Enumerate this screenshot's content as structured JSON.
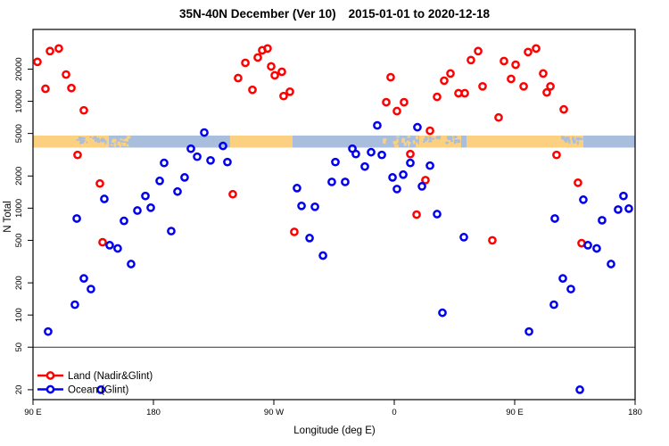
{
  "title": {
    "range_label": "35N-40N December (Ver 10)",
    "date_range": "2015-01-01 to 2020-12-18"
  },
  "axes": {
    "x": {
      "label": "Longitude (deg E)",
      "ticks": [
        {
          "lon": 90,
          "label": "90 E"
        },
        {
          "lon": 180,
          "label": "180"
        },
        {
          "lon": 270,
          "label": "90 W"
        },
        {
          "lon": 360,
          "label": "0"
        },
        {
          "lon": 450,
          "label": "90 E"
        },
        {
          "lon": 540,
          "label": "180"
        }
      ]
    },
    "y": {
      "label": "N Total",
      "scale": "log",
      "ticks": [
        20000,
        10000,
        5000,
        2000,
        1000,
        500,
        200,
        100,
        50,
        20
      ]
    }
  },
  "legend": {
    "position": "bottom-left",
    "entries": [
      {
        "name": "Land (Nadir&Glint)",
        "color": "#FF0000"
      },
      {
        "name": "Ocean (Glint)",
        "color": "#0000EE"
      }
    ]
  },
  "colors": {
    "land_marker": "#FF0000",
    "ocean_marker": "#0000EE",
    "strip_land": "#FBD181",
    "strip_ocean": "#A8BEDC",
    "axis": "#000000",
    "reference_line": "#333333"
  },
  "chart_data": {
    "type": "scatter",
    "x_encoding": "longitude in degrees east, unwrapped 90..540 across axis 90E-180-90W-0-90E-180",
    "y_range_displayed": [
      18,
      46000
    ],
    "reference_line_y": 50,
    "map_strip": {
      "description": "thin land/ocean map band of the 35N-40N zone drawn across the plot",
      "value_band": [
        3690,
        4780
      ],
      "segments": [
        {
          "from": 90,
          "to": 121.7,
          "type": "land"
        },
        {
          "from": 121.7,
          "to": 146.7,
          "type": "mixed_land"
        },
        {
          "from": 146.7,
          "to": 164,
          "type": "mixed_ocean"
        },
        {
          "from": 164,
          "to": 237.3,
          "type": "ocean"
        },
        {
          "from": 237.3,
          "to": 284,
          "type": "land"
        },
        {
          "from": 284,
          "to": 350,
          "type": "ocean"
        },
        {
          "from": 350,
          "to": 378.7,
          "type": "mixed_ocean"
        },
        {
          "from": 378.7,
          "to": 410,
          "type": "mixed_land"
        },
        {
          "from": 410,
          "to": 414,
          "type": "ocean"
        },
        {
          "from": 414,
          "to": 483.3,
          "type": "land"
        },
        {
          "from": 483.3,
          "to": 501.3,
          "type": "mixed_land"
        },
        {
          "from": 501.3,
          "to": 540,
          "type": "ocean"
        }
      ]
    },
    "series": [
      {
        "name": "Land (Nadir&Glint)",
        "color": "#FF0000",
        "points": [
          [
            93.3,
            23400
          ],
          [
            102.7,
            29500
          ],
          [
            109.3,
            31200
          ],
          [
            99.3,
            13100
          ],
          [
            114.7,
            17800
          ],
          [
            118.7,
            13300
          ],
          [
            128,
            8230
          ],
          [
            248.7,
            22900
          ],
          [
            243.3,
            16500
          ],
          [
            254,
            12800
          ],
          [
            258,
            25700
          ],
          [
            261.3,
            30000
          ],
          [
            265.3,
            31200
          ],
          [
            268,
            21200
          ],
          [
            270.7,
            17500
          ],
          [
            276,
            18900
          ],
          [
            277.3,
            11200
          ],
          [
            282,
            12300
          ],
          [
            357.3,
            16800
          ],
          [
            354,
            9800
          ],
          [
            362,
            8100
          ],
          [
            367.3,
            9800
          ],
          [
            392,
            11000
          ],
          [
            397.3,
            15600
          ],
          [
            402,
            18200
          ],
          [
            408,
            11900
          ],
          [
            412.7,
            11900
          ],
          [
            417.3,
            24300
          ],
          [
            422.7,
            29500
          ],
          [
            426,
            13800
          ],
          [
            438,
            7050
          ],
          [
            442,
            23800
          ],
          [
            450.7,
            22000
          ],
          [
            447.3,
            16200
          ],
          [
            456.7,
            13800
          ],
          [
            460,
            28900
          ],
          [
            466,
            31200
          ],
          [
            471.3,
            18200
          ],
          [
            476.7,
            13800
          ],
          [
            474,
            12100
          ],
          [
            486.7,
            8400
          ],
          [
            386.7,
            5300
          ],
          [
            123.3,
            3150
          ],
          [
            140,
            1700
          ],
          [
            142,
            480
          ],
          [
            239.3,
            1350
          ],
          [
            285.3,
            600
          ],
          [
            372,
            3210
          ],
          [
            383.3,
            1830
          ],
          [
            376.7,
            870
          ],
          [
            433.3,
            500
          ],
          [
            481.3,
            3150
          ],
          [
            497.3,
            1730
          ],
          [
            500,
            470
          ]
        ]
      },
      {
        "name": "Ocean (Glint)",
        "color": "#0000EE",
        "points": [
          [
            218,
            5100
          ],
          [
            208,
            3600
          ],
          [
            232,
            3820
          ],
          [
            347.3,
            5950
          ],
          [
            377.3,
            5720
          ],
          [
            143.3,
            1220
          ],
          [
            122.7,
            800
          ],
          [
            158,
            760
          ],
          [
            168,
            950
          ],
          [
            174,
            1300
          ],
          [
            178,
            1010
          ],
          [
            184.7,
            1800
          ],
          [
            188,
            2650
          ],
          [
            198,
            1430
          ],
          [
            203.3,
            1940
          ],
          [
            212.7,
            3030
          ],
          [
            222.7,
            2800
          ],
          [
            235.3,
            2700
          ],
          [
            193.3,
            610
          ],
          [
            147.3,
            450
          ],
          [
            153.3,
            420
          ],
          [
            163.3,
            300
          ],
          [
            287.3,
            1540
          ],
          [
            290.7,
            1050
          ],
          [
            300.7,
            1030
          ],
          [
            296.7,
            525
          ],
          [
            306.7,
            360
          ],
          [
            316,
            2700
          ],
          [
            313.3,
            1760
          ],
          [
            328.7,
            3600
          ],
          [
            331.3,
            3210
          ],
          [
            342.7,
            3340
          ],
          [
            350.7,
            3150
          ],
          [
            338,
            2450
          ],
          [
            323.3,
            1760
          ],
          [
            358.7,
            1940
          ],
          [
            366.7,
            2060
          ],
          [
            372,
            2650
          ],
          [
            362,
            1510
          ],
          [
            386.7,
            2500
          ],
          [
            380.7,
            1600
          ],
          [
            392,
            880
          ],
          [
            412,
            535
          ],
          [
            480,
            800
          ],
          [
            501.3,
            1200
          ],
          [
            531.3,
            1300
          ],
          [
            527.3,
            970
          ],
          [
            535.3,
            990
          ],
          [
            515.3,
            770
          ],
          [
            504.7,
            450
          ],
          [
            511.3,
            420
          ],
          [
            522,
            300
          ],
          [
            128,
            220
          ],
          [
            133.3,
            175
          ],
          [
            121.3,
            125
          ],
          [
            101.3,
            70
          ],
          [
            140.7,
            20
          ],
          [
            396,
            105
          ],
          [
            486,
            220
          ],
          [
            492,
            175
          ],
          [
            479.3,
            125
          ],
          [
            460.7,
            70
          ],
          [
            498.7,
            20
          ]
        ]
      }
    ]
  }
}
